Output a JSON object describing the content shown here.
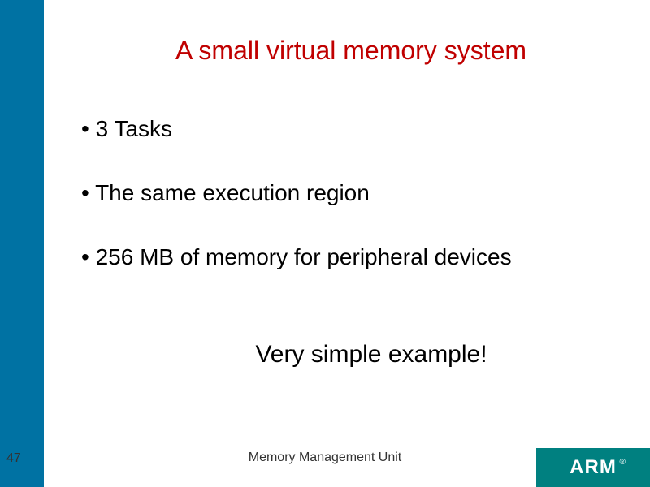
{
  "colors": {
    "sidebar": "#0072a3",
    "title": "#c00000",
    "body_text": "#000000",
    "footer_text": "#333333",
    "logo_bg": "#008080",
    "logo_fg": "#ffffff",
    "background": "#ffffff"
  },
  "title": "A small virtual memory system",
  "bullets": [
    "3 Tasks",
    "The same execution region",
    "256 MB of memory for peripheral devices"
  ],
  "subtitle": "Very simple example!",
  "footer": {
    "page_number": "47",
    "text": "Memory Management Unit"
  },
  "logo": {
    "text": "ARM",
    "registered": "®"
  }
}
